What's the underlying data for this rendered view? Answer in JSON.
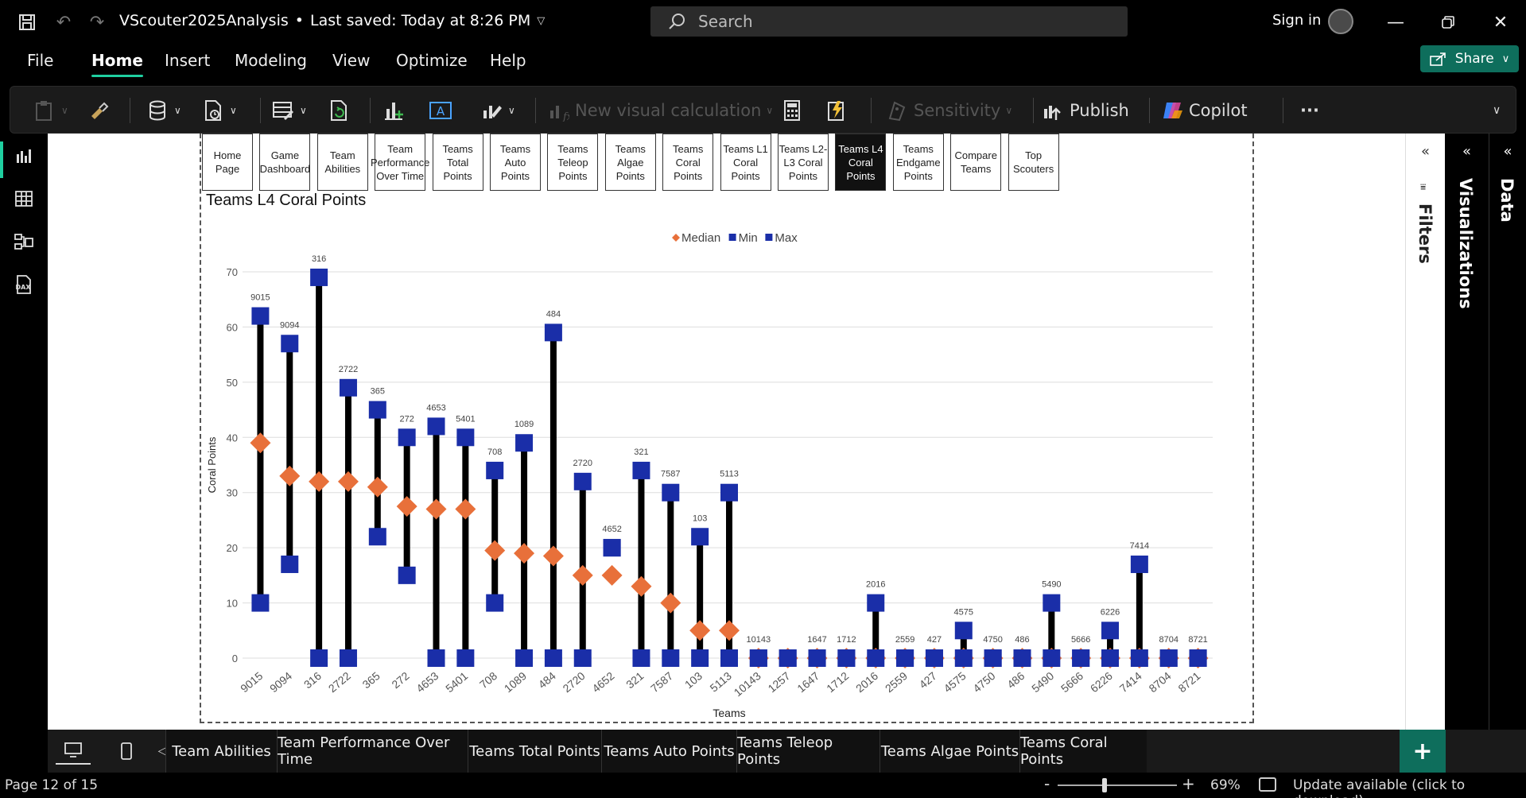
{
  "titlebar": {
    "doc_title": "VScouter2025Analysis",
    "save_status": "Last saved: Today at 8:26 PM",
    "search_placeholder": "Search",
    "sign_in": "Sign in"
  },
  "menu": {
    "items": [
      "File",
      "Home",
      "Insert",
      "Modeling",
      "View",
      "Optimize",
      "Help"
    ],
    "active": "Home",
    "share": "Share"
  },
  "ribbon": {
    "new_visual_calc": "New visual calculation",
    "sensitivity": "Sensitivity",
    "publish": "Publish",
    "copilot": "Copilot",
    "more": "···"
  },
  "nav_buttons": [
    {
      "label": "Home Page",
      "active": false
    },
    {
      "label": "Game Dashboard",
      "active": false
    },
    {
      "label": "Team Abilities",
      "active": false
    },
    {
      "label": "Team Performance Over Time",
      "active": false
    },
    {
      "label": "Teams Total Points",
      "active": false
    },
    {
      "label": "Teams Auto Points",
      "active": false
    },
    {
      "label": "Teams Teleop Points",
      "active": false
    },
    {
      "label": "Teams Algae Points",
      "active": false
    },
    {
      "label": "Teams Coral Points",
      "active": false
    },
    {
      "label": "Teams L1 Coral Points",
      "active": false
    },
    {
      "label": "Teams L2-L3 Coral Points",
      "active": false
    },
    {
      "label": "Teams L4 Coral Points",
      "active": true
    },
    {
      "label": "Teams Endgame Points",
      "active": false
    },
    {
      "label": "Compare Teams",
      "active": false
    },
    {
      "label": "Top Scouters",
      "active": false
    }
  ],
  "chart_data": {
    "type": "scatter",
    "title": "Teams L4 Coral Points",
    "xlabel": "Teams",
    "ylabel": "Coral Points",
    "ylim": [
      0,
      70
    ],
    "yticks": [
      0,
      10,
      20,
      30,
      40,
      50,
      60,
      70
    ],
    "grid": true,
    "legend_position": "top-center",
    "categories": [
      "9015",
      "9094",
      "316",
      "2722",
      "365",
      "272",
      "4653",
      "5401",
      "708",
      "1089",
      "484",
      "2720",
      "4652",
      "321",
      "7587",
      "103",
      "5113",
      "10143",
      "1257",
      "1647",
      "1712",
      "2016",
      "2559",
      "427",
      "4575",
      "4750",
      "486",
      "5490",
      "5666",
      "6226",
      "7414",
      "8704",
      "8721"
    ],
    "series": [
      {
        "name": "Median",
        "marker": "diamond",
        "color": "#e8703a",
        "values": [
          39,
          33,
          32,
          32,
          31,
          27.5,
          27,
          27,
          19.5,
          19,
          18.5,
          15,
          15,
          13,
          10,
          5,
          5,
          0,
          0,
          0,
          0,
          0,
          0,
          0,
          0,
          0,
          0,
          0,
          0,
          0,
          0,
          0,
          0
        ]
      },
      {
        "name": "Min",
        "marker": "square",
        "color": "#1a2ea8",
        "values": [
          10,
          17,
          0,
          0,
          22,
          15,
          0,
          0,
          10,
          0,
          0,
          0,
          20,
          0,
          0,
          0,
          0,
          0,
          0,
          0,
          0,
          0,
          0,
          0,
          0,
          0,
          0,
          0,
          0,
          0,
          0,
          0,
          0
        ]
      },
      {
        "name": "Max",
        "marker": "square",
        "color": "#1a2ea8",
        "values": [
          62,
          57,
          69,
          49,
          45,
          40,
          42,
          40,
          34,
          39,
          59,
          32,
          20,
          34,
          30,
          22,
          30,
          0,
          0,
          0,
          0,
          10,
          0,
          0,
          5,
          0,
          0,
          10,
          0,
          5,
          17,
          0,
          0
        ]
      }
    ],
    "data_labels": [
      "9015",
      "9094",
      "316",
      "2722",
      "365",
      "272",
      "4653",
      "5401",
      "708",
      "1089",
      "484",
      "2720",
      "4652",
      "321",
      "7587",
      "103",
      "5113",
      "10143",
      "",
      "1647",
      "1712",
      "2016",
      "2559",
      "427",
      "4575",
      "4750",
      "486",
      "5490",
      "5666",
      "6226",
      "7414",
      "8704",
      "8721"
    ],
    "range_line_color": "#000000"
  },
  "page_tabs": [
    "Team Abilities",
    "Team Performance Over Time",
    "Teams Total Points",
    "Teams Auto Points",
    "Teams Teleop Points",
    "Teams Algae Points",
    "Teams Coral Points"
  ],
  "panes": {
    "filters": "Filters",
    "visualizations": "Visualizations",
    "data": "Data"
  },
  "status": {
    "page": "Page 12 of 15",
    "zoom": "69%",
    "zoom_level_percent": 69,
    "update": "Update available (click to download)"
  }
}
